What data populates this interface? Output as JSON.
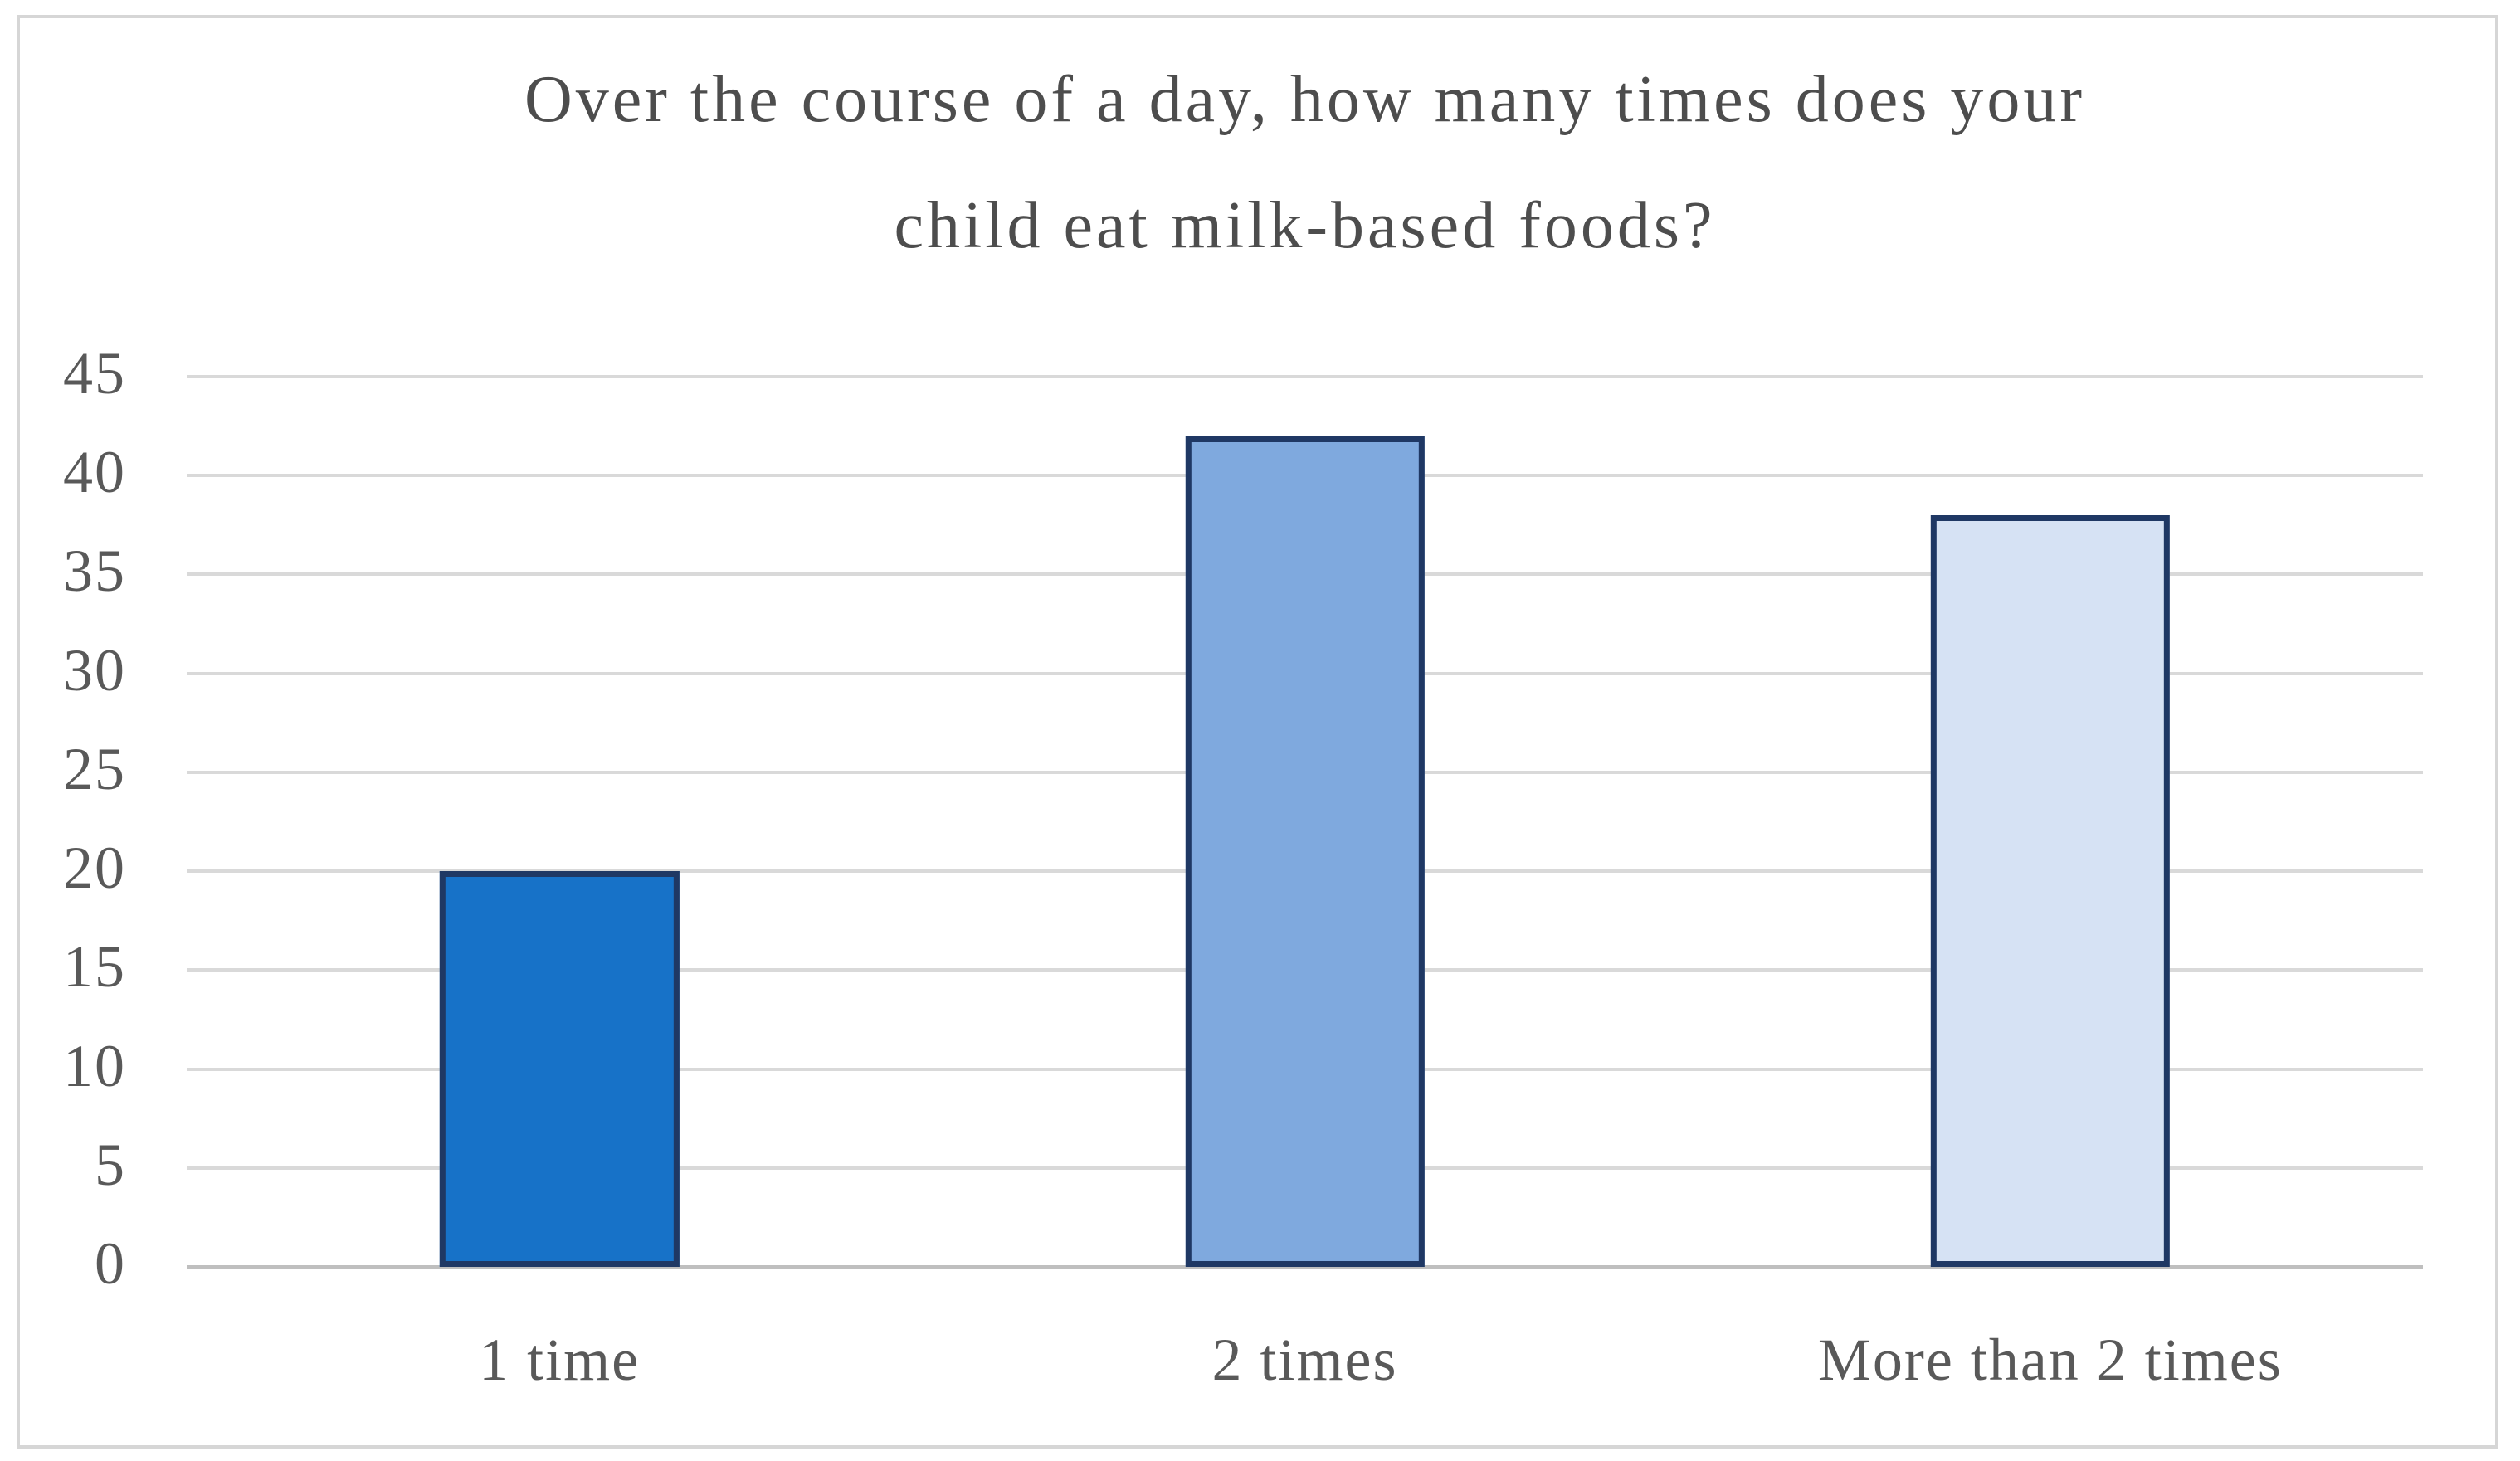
{
  "chart_data": {
    "type": "bar",
    "title": "Over the course of a day, how many times does your child eat milk-based foods?",
    "title_lines": [
      "Over the course of a day, how many times does your",
      "child eat milk-based foods?"
    ],
    "categories": [
      "1 time",
      "2 times",
      "More than 2 times"
    ],
    "values": [
      20,
      42,
      38
    ],
    "xlabel": "",
    "ylabel": "",
    "ylim": [
      0,
      45
    ],
    "y_ticks": [
      45,
      40,
      35,
      30,
      25,
      20,
      15,
      10,
      5,
      0
    ],
    "grid": "horizontal",
    "legend": "none",
    "bar_colors": [
      "#1772C8",
      "#7FA9DE",
      "#D6E2F4"
    ],
    "bar_border_color": "#1F3864",
    "gridline_color": "#D9D9D9",
    "axis_line_color": "#BFBFBF",
    "tick_text_color": "#595959",
    "title_text_color": "#4D4D4D",
    "frame_border_color": "#D6D6D6",
    "background_color": "#FFFFFF"
  }
}
